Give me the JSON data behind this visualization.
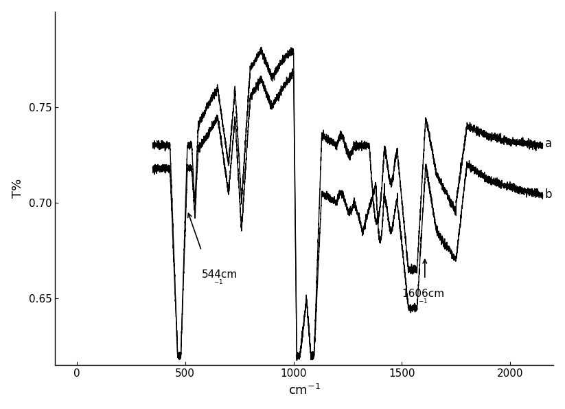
{
  "title": "",
  "xlabel": "cm⁻¹",
  "ylabel": "T%",
  "xlim": [
    -100,
    2200
  ],
  "ylim": [
    0.615,
    0.8
  ],
  "xticks": [
    0,
    500,
    1000,
    1500,
    2000
  ],
  "yticks": [
    0.65,
    0.7,
    0.75
  ],
  "label_a": "a",
  "label_b": "b",
  "annotation1": "544cm",
  "annotation1_sup": "-1",
  "annotation2": "1606cm",
  "annotation2_sup": "-1",
  "line_color": "#000000",
  "background_color": "#ffffff"
}
